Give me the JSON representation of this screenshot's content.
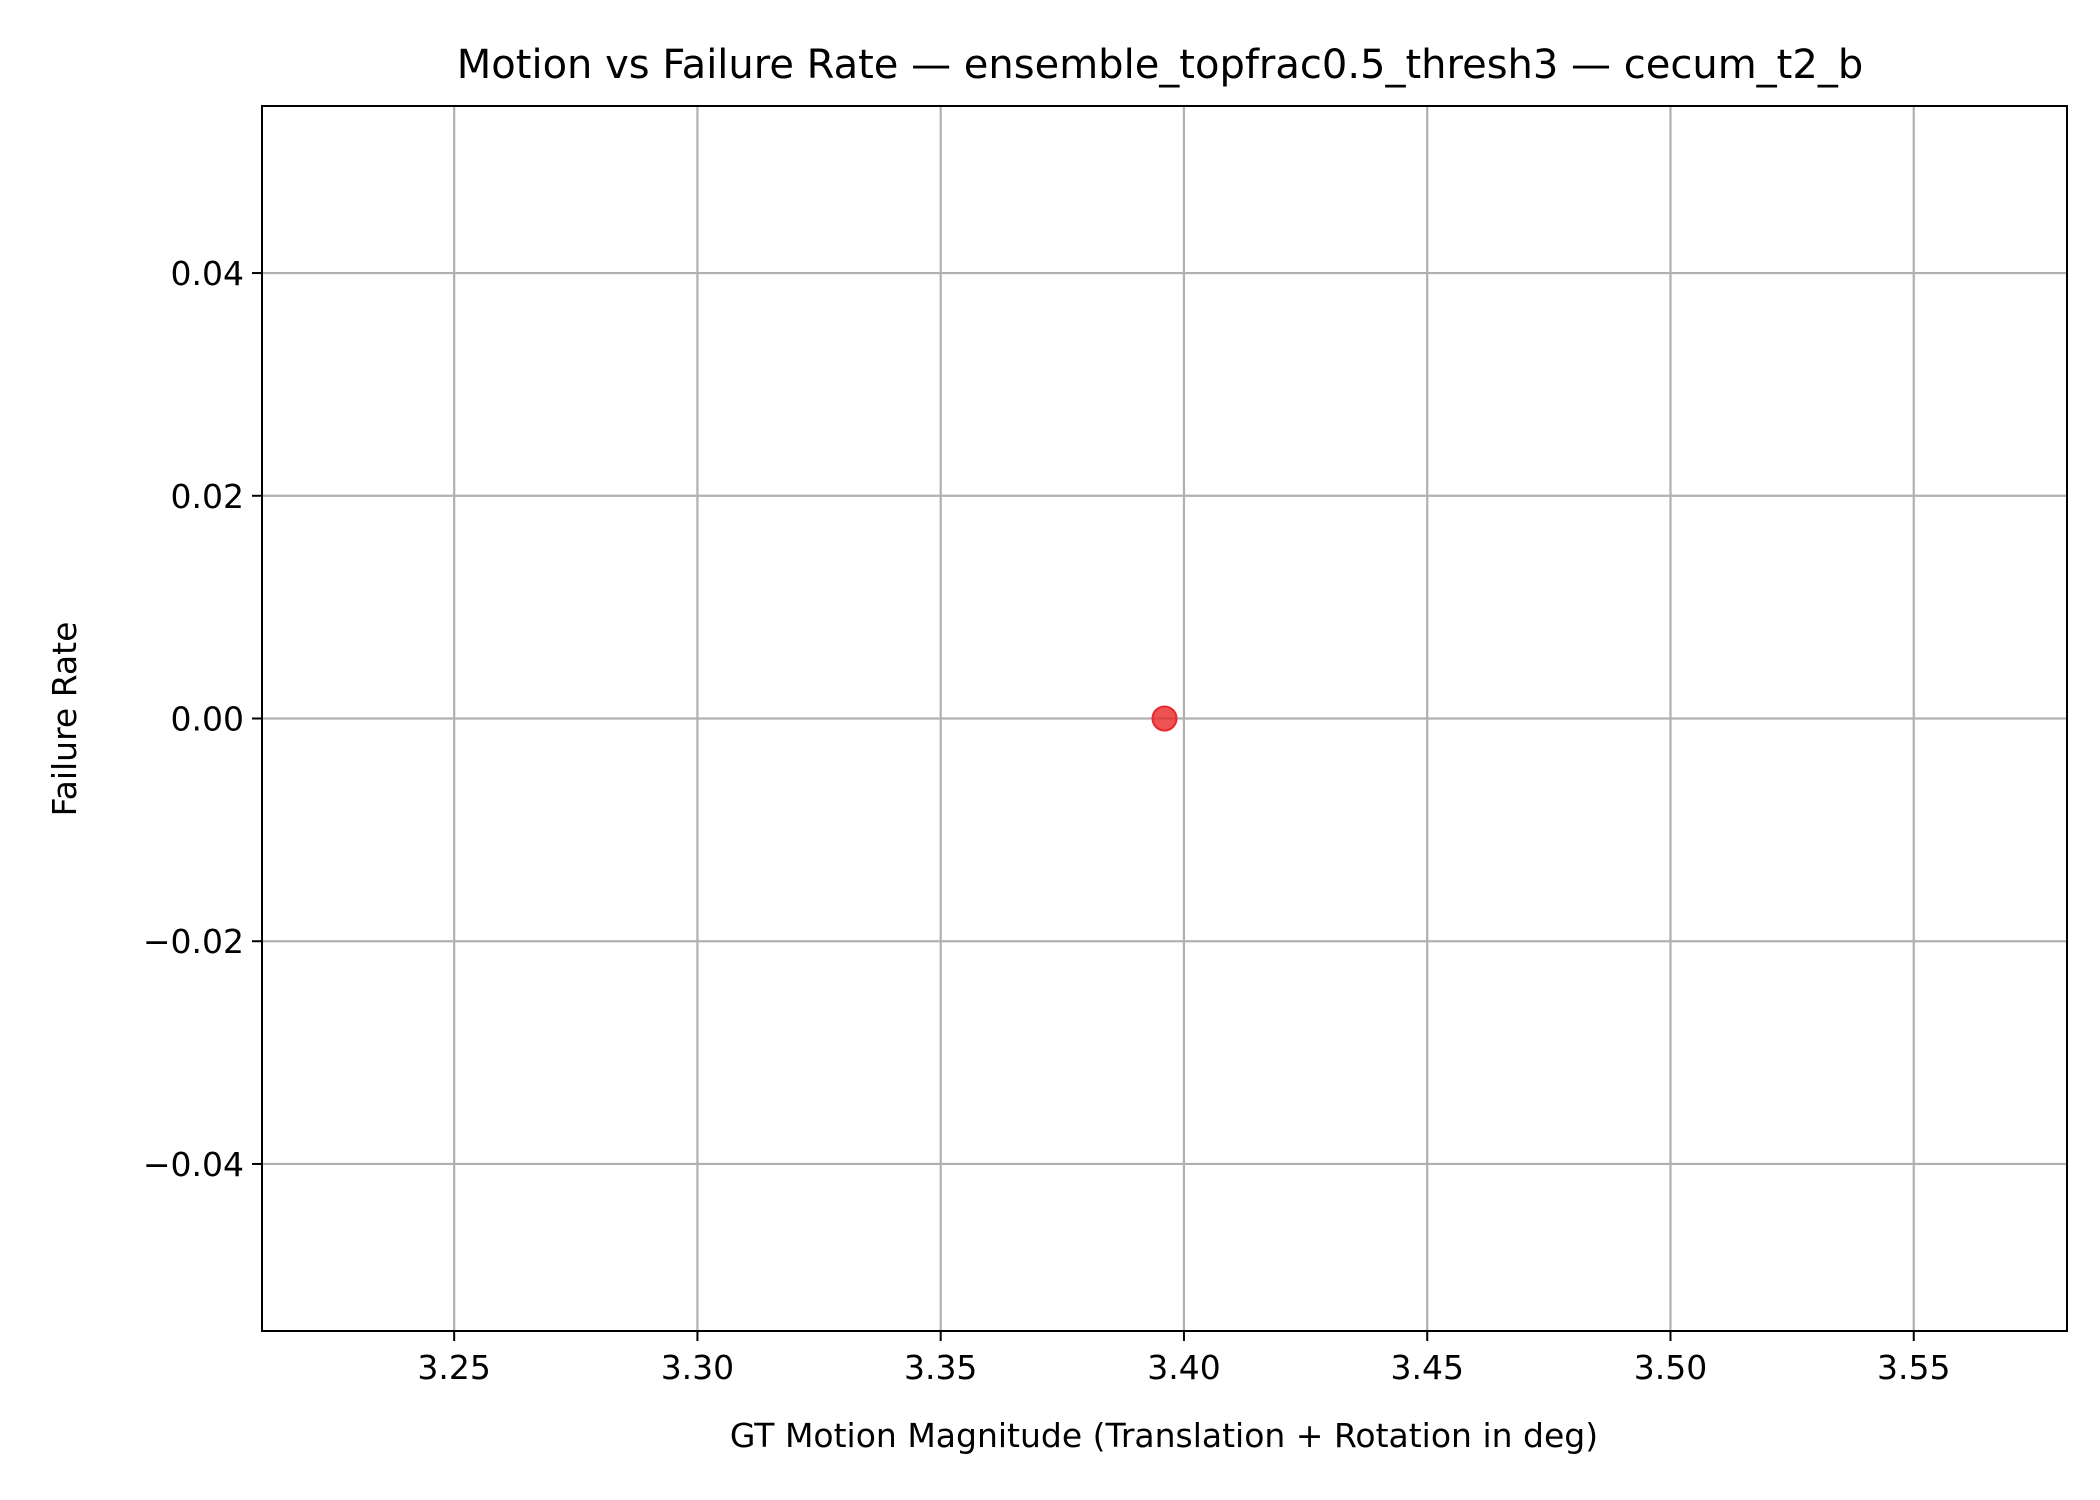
{
  "chart_data": {
    "type": "scatter",
    "title": "Motion vs Failure Rate — ensemble_topfrac0.5_thresh3 — cecum_t2_b",
    "xlabel": "GT Motion Magnitude (Translation + Rotation in deg)",
    "ylabel": "Failure Rate",
    "xlim": [
      3.2105,
      3.5815
    ],
    "ylim": [
      -0.055,
      0.055
    ],
    "xticks": [
      3.25,
      3.3,
      3.35,
      3.4,
      3.45,
      3.5,
      3.55
    ],
    "xtick_labels": [
      "3.25",
      "3.30",
      "3.35",
      "3.40",
      "3.45",
      "3.50",
      "3.55"
    ],
    "yticks": [
      -0.04,
      -0.02,
      0.0,
      0.02,
      0.04
    ],
    "ytick_labels": [
      "−0.04",
      "−0.02",
      "0.00",
      "0.02",
      "0.04"
    ],
    "grid": true,
    "points": [
      {
        "x": 3.396,
        "y": 0.0
      }
    ],
    "marker_color": "#e8282b",
    "marker_alpha": 0.8
  }
}
